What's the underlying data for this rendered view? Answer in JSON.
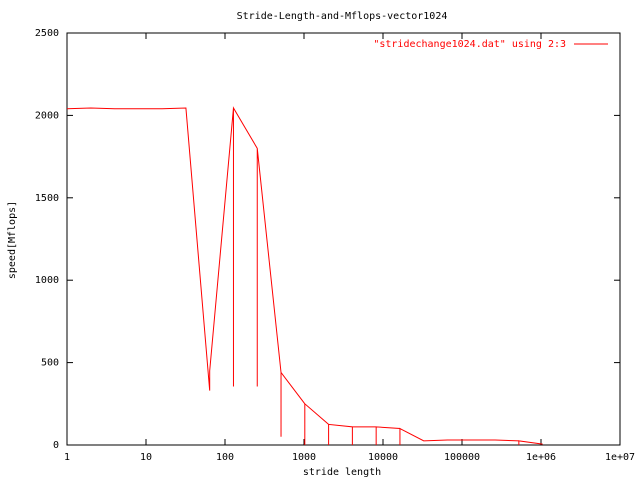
{
  "chart_data": {
    "type": "line",
    "title": "Stride-Length-and-Mflops-vector1024",
    "x_label": "stride length",
    "y_label": "speed[Mflops]",
    "x": [
      1,
      2,
      4,
      8,
      16,
      32,
      64,
      64,
      128,
      128,
      128,
      256,
      256,
      256,
      512,
      512,
      512,
      1024,
      1024,
      1024,
      2048,
      2048,
      2048,
      4096,
      4096,
      4096,
      8192,
      8192,
      8192,
      16384,
      16384,
      16384,
      32768,
      65536,
      131072,
      262144,
      524288,
      524288,
      524288,
      1048576
    ],
    "series": [
      {
        "name": "\"stridechange1024.dat\" using 2:3",
        "color": "#ff0000",
        "values": [
          2040,
          2045,
          2040,
          2040,
          2040,
          2045,
          330,
          450,
          2045,
          355,
          2045,
          1800,
          355,
          1800,
          440,
          50,
          440,
          250,
          0,
          250,
          125,
          0,
          125,
          110,
          0,
          110,
          110,
          0,
          110,
          100,
          0,
          100,
          25,
          30,
          30,
          30,
          25,
          0,
          25,
          5
        ]
      }
    ],
    "xlim": [
      1,
      10000000
    ],
    "ylim": [
      0,
      2500
    ],
    "x_log": true,
    "grid": false,
    "legend": "top-right",
    "xticks": [
      1,
      10,
      100,
      1000,
      10000,
      100000,
      {
        "value": 1000000,
        "label": "1e+06"
      },
      {
        "value": 10000000,
        "label": "1e+07"
      }
    ],
    "yticks": [
      0,
      500,
      1000,
      1500,
      2000,
      2500
    ]
  }
}
